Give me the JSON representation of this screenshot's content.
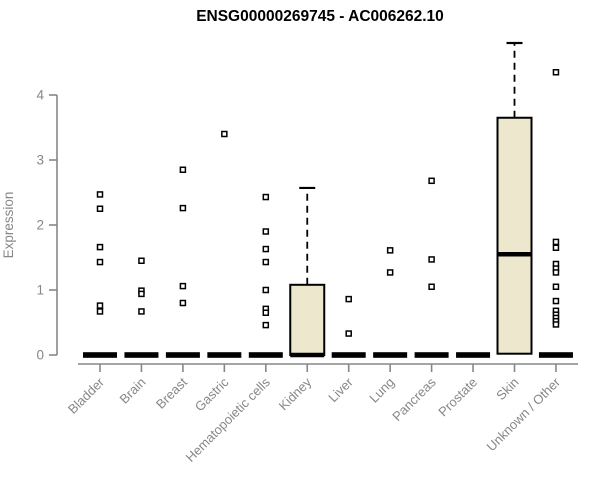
{
  "chart_data": {
    "type": "boxplot",
    "title": "ENSG00000269745 - AC006262.10",
    "ylabel": "Expression",
    "xlabel": "",
    "ylim": [
      0,
      4
    ],
    "yticks": [
      0,
      1,
      2,
      3,
      4
    ],
    "grid": false,
    "legend": "none",
    "axis_color": "#878787",
    "box_fill_color": "#ECE7CD",
    "box_stroke_color": "#000000",
    "outlier_marker": "open-square",
    "categories": [
      "Bladder",
      "Brain",
      "Breast",
      "Gastric",
      "Hematopoietic cells",
      "Kidney",
      "Liver",
      "Lung",
      "Pancreas",
      "Prostate",
      "Skin",
      "Unknown / Other"
    ],
    "series": [
      {
        "name": "Bladder",
        "q1": 0,
        "median": 0,
        "q3": 0,
        "whisker_low": 0,
        "whisker_high": 0,
        "outliers": [
          2.47,
          2.25,
          1.66,
          1.43,
          0.76,
          0.67
        ]
      },
      {
        "name": "Brain",
        "q1": 0,
        "median": 0,
        "q3": 0,
        "whisker_low": 0,
        "whisker_high": 0,
        "outliers": [
          1.45,
          0.99,
          0.94,
          0.67
        ]
      },
      {
        "name": "Breast",
        "q1": 0,
        "median": 0,
        "q3": 0,
        "whisker_low": 0,
        "whisker_high": 0,
        "outliers": [
          2.85,
          2.26,
          1.06,
          0.8
        ]
      },
      {
        "name": "Gastric",
        "q1": 0,
        "median": 0,
        "q3": 0,
        "whisker_low": 0,
        "whisker_high": 0,
        "outliers": [
          3.4
        ]
      },
      {
        "name": "Hematopoietic cells",
        "q1": 0,
        "median": 0,
        "q3": 0,
        "whisker_low": 0,
        "whisker_high": 0,
        "outliers": [
          2.43,
          1.9,
          1.63,
          1.43,
          1.0,
          0.71,
          0.65,
          0.46
        ]
      },
      {
        "name": "Kidney",
        "q1": 0,
        "median": 0,
        "q3": 1.08,
        "whisker_low": 0,
        "whisker_high": 2.57,
        "outliers": []
      },
      {
        "name": "Liver",
        "q1": 0,
        "median": 0,
        "q3": 0,
        "whisker_low": 0,
        "whisker_high": 0,
        "outliers": [
          0.86,
          0.33
        ]
      },
      {
        "name": "Lung",
        "q1": 0,
        "median": 0,
        "q3": 0,
        "whisker_low": 0,
        "whisker_high": 0,
        "outliers": [
          1.61,
          1.27
        ]
      },
      {
        "name": "Pancreas",
        "q1": 0,
        "median": 0,
        "q3": 0,
        "whisker_low": 0,
        "whisker_high": 0,
        "outliers": [
          2.68,
          1.47,
          1.05
        ]
      },
      {
        "name": "Prostate",
        "q1": 0,
        "median": 0,
        "q3": 0,
        "whisker_low": 0,
        "whisker_high": 0,
        "outliers": []
      },
      {
        "name": "Skin",
        "q1": 0.02,
        "median": 1.55,
        "q3": 3.65,
        "whisker_low": 0.02,
        "whisker_high": 4.8,
        "outliers": []
      },
      {
        "name": "Unknown / Other",
        "q1": 0,
        "median": 0,
        "q3": 0,
        "whisker_low": 0,
        "whisker_high": 0,
        "outliers": [
          4.35,
          1.74,
          1.65,
          1.4,
          1.33,
          1.27,
          1.05,
          0.83,
          0.68,
          0.62,
          0.57,
          0.52,
          0.47
        ]
      }
    ]
  }
}
